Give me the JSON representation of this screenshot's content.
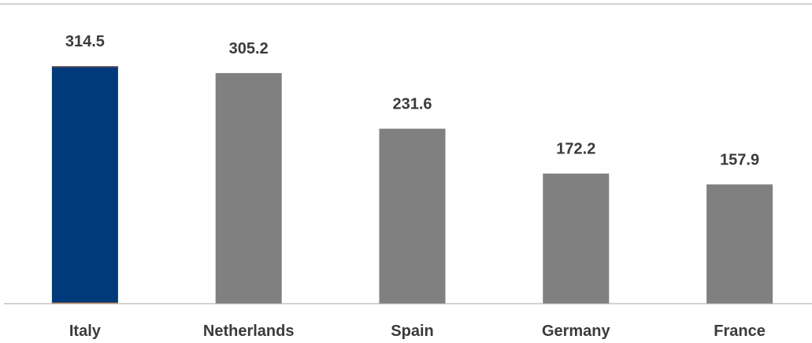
{
  "chart_data": {
    "type": "bar",
    "title": "",
    "xlabel": "",
    "ylabel": "",
    "categories": [
      "Italy",
      "Netherlands",
      "Spain",
      "Germany",
      "France"
    ],
    "values": [
      314.5,
      305.2,
      231.6,
      172.2,
      157.9
    ],
    "value_labels": [
      "314.5",
      "305.2",
      "231.6",
      "172.2",
      "157.9"
    ],
    "ylim": [
      0,
      324
    ],
    "grid": false,
    "legend": "none",
    "highlight_index": 0,
    "colors": {
      "highlight": "#003a7a",
      "default": "#808080",
      "highlight_baseline_accent": "#c0703a",
      "axis": "#a6a6a6",
      "text": "#3b3b3b"
    }
  }
}
